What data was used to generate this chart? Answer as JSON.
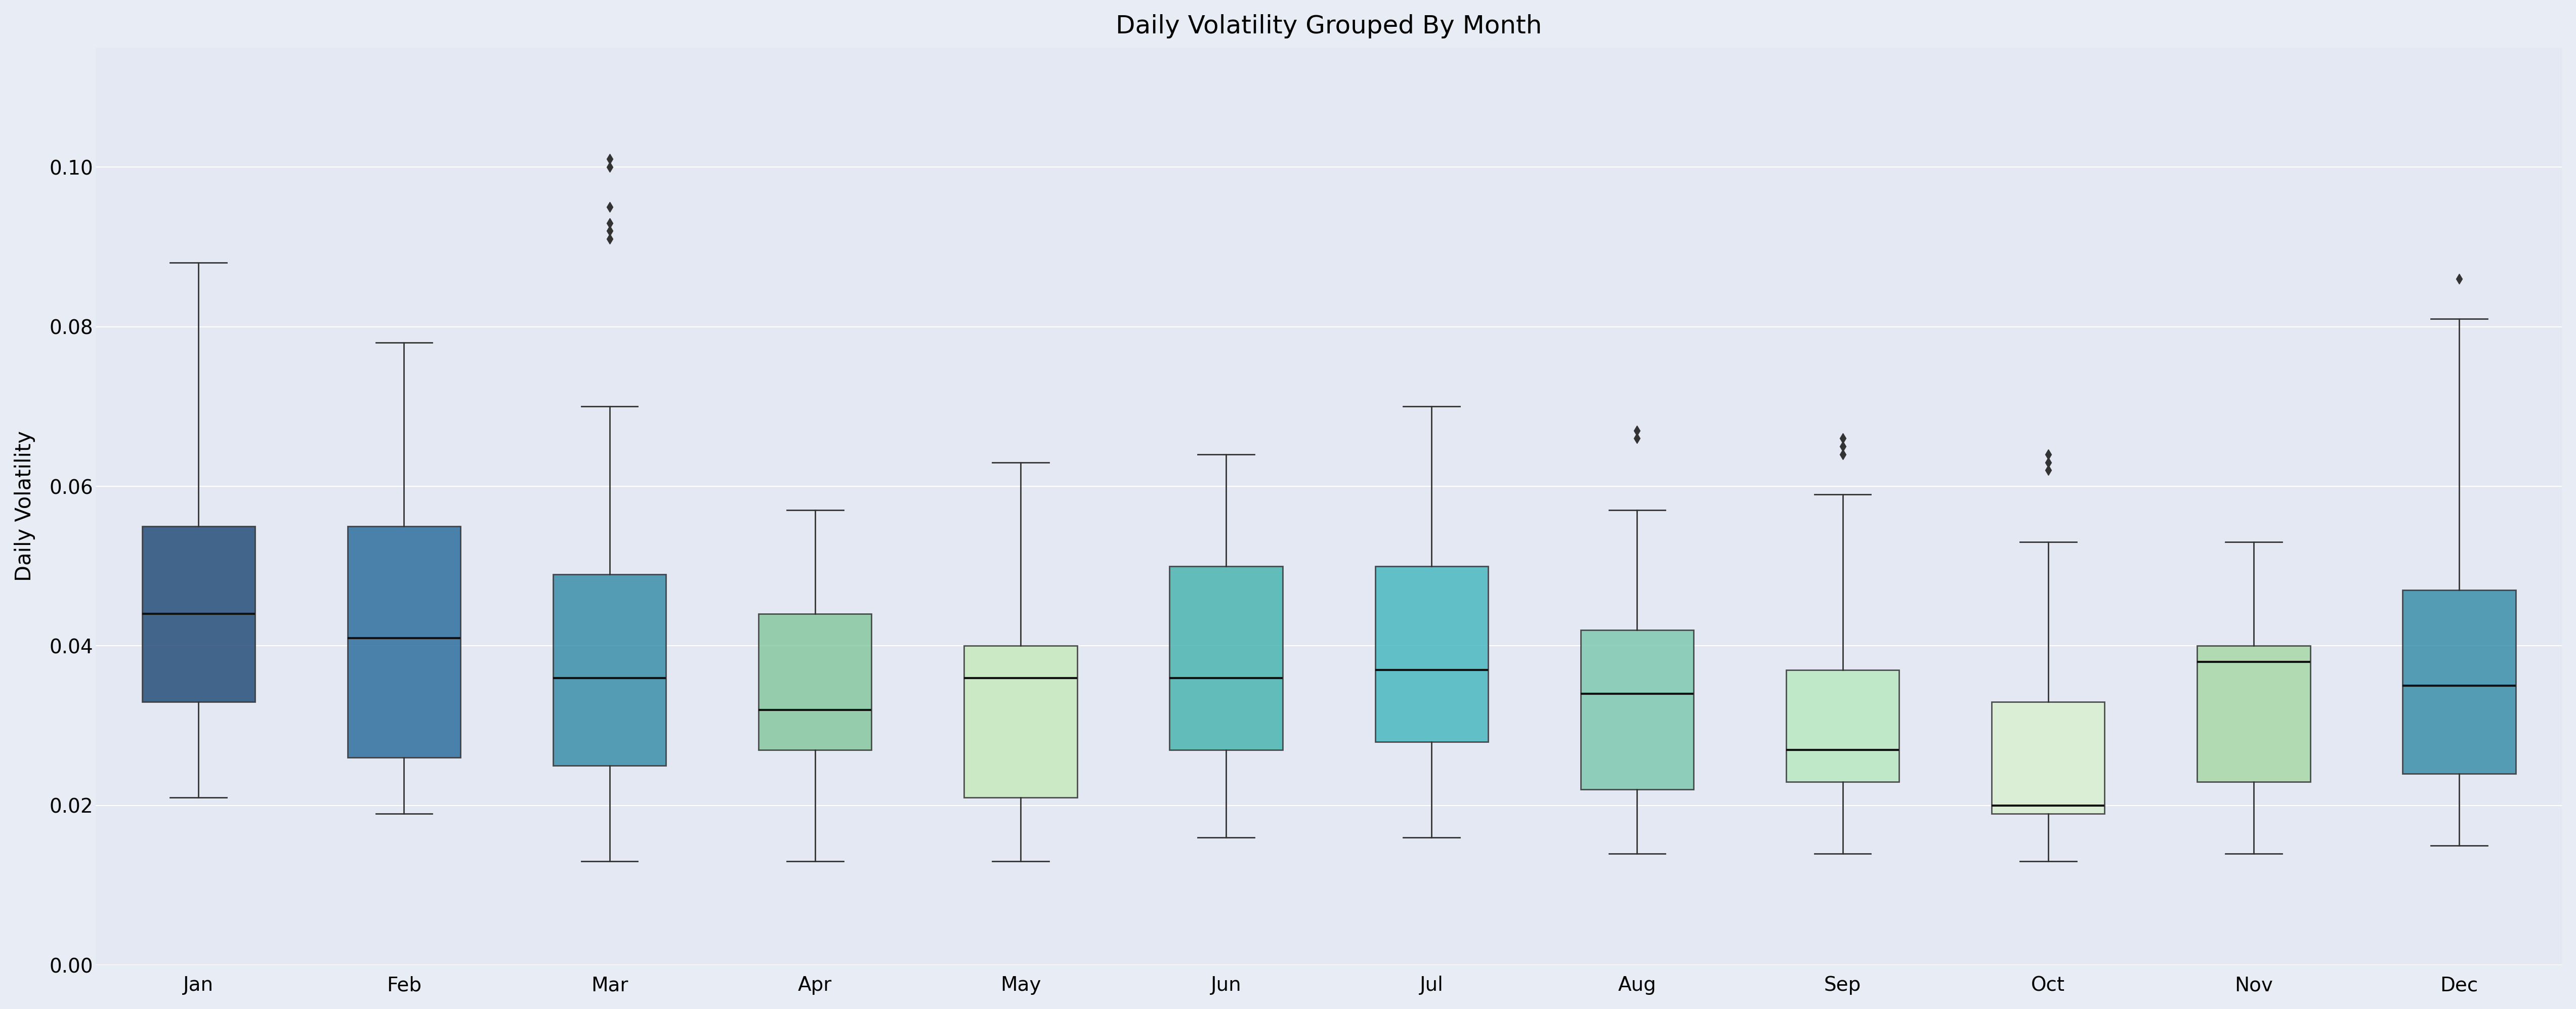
{
  "title": "Daily Volatility Grouped By Month",
  "ylabel": "Daily Volatility",
  "months": [
    "Jan",
    "Feb",
    "Mar",
    "Apr",
    "May",
    "Jun",
    "Jul",
    "Aug",
    "Sep",
    "Oct",
    "Nov",
    "Dec"
  ],
  "box_colors": [
    "#264e7a",
    "#2e6f9e",
    "#3a8fa8",
    "#88c9a0",
    "#c8eabf",
    "#4ab5b0",
    "#4ab8c0",
    "#7ec9b0",
    "#b8e8c0",
    "#d8f0d0",
    "#a8d8a8",
    "#3a8fa8"
  ],
  "boxes": [
    {
      "q1": 0.033,
      "median": 0.044,
      "q3": 0.055,
      "whislo": 0.021,
      "whishi": 0.088,
      "fliers": []
    },
    {
      "q1": 0.026,
      "median": 0.041,
      "q3": 0.055,
      "whislo": 0.019,
      "whishi": 0.078,
      "fliers": []
    },
    {
      "q1": 0.025,
      "median": 0.036,
      "q3": 0.049,
      "whislo": 0.013,
      "whishi": 0.07,
      "fliers": [
        0.091,
        0.092,
        0.093,
        0.095,
        0.1,
        0.101
      ]
    },
    {
      "q1": 0.027,
      "median": 0.032,
      "q3": 0.044,
      "whislo": 0.013,
      "whishi": 0.057,
      "fliers": []
    },
    {
      "q1": 0.021,
      "median": 0.036,
      "q3": 0.04,
      "whislo": 0.013,
      "whishi": 0.063,
      "fliers": []
    },
    {
      "q1": 0.027,
      "median": 0.036,
      "q3": 0.05,
      "whislo": 0.016,
      "whishi": 0.064,
      "fliers": []
    },
    {
      "q1": 0.028,
      "median": 0.037,
      "q3": 0.05,
      "whislo": 0.016,
      "whishi": 0.07,
      "fliers": []
    },
    {
      "q1": 0.022,
      "median": 0.034,
      "q3": 0.042,
      "whislo": 0.014,
      "whishi": 0.057,
      "fliers": [
        0.066,
        0.067
      ]
    },
    {
      "q1": 0.023,
      "median": 0.027,
      "q3": 0.037,
      "whislo": 0.014,
      "whishi": 0.059,
      "fliers": [
        0.064,
        0.065,
        0.066
      ]
    },
    {
      "q1": 0.019,
      "median": 0.02,
      "q3": 0.033,
      "whislo": 0.013,
      "whishi": 0.053,
      "fliers": [
        0.062,
        0.063,
        0.064
      ]
    },
    {
      "q1": 0.023,
      "median": 0.038,
      "q3": 0.04,
      "whislo": 0.014,
      "whishi": 0.053,
      "fliers": []
    },
    {
      "q1": 0.024,
      "median": 0.035,
      "q3": 0.047,
      "whislo": 0.015,
      "whishi": 0.081,
      "fliers": [
        0.086
      ]
    }
  ],
  "ylim": [
    0.0,
    0.115
  ],
  "background_color": "#e8ecf4",
  "plot_background": "#e4e8f2",
  "title_fontsize": 36,
  "label_fontsize": 30,
  "tick_fontsize": 28
}
